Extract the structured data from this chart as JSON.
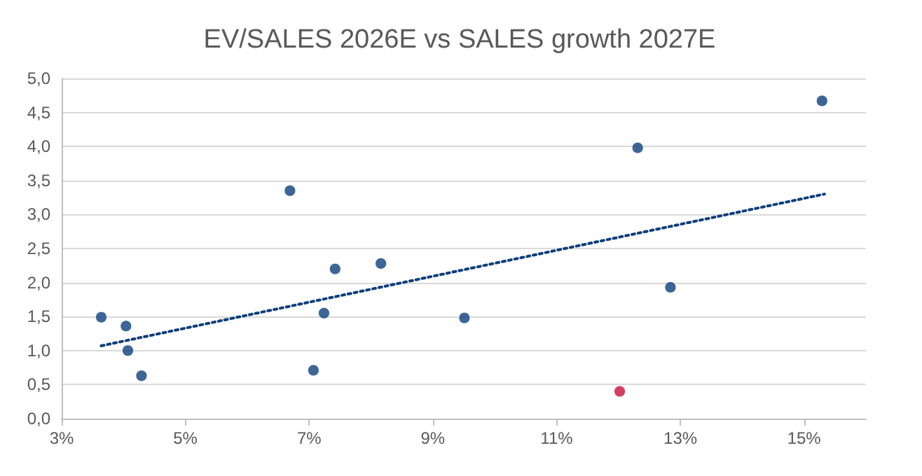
{
  "chart_data": {
    "type": "scatter",
    "title": "EV/SALES 2026E vs SALES growth 2027E",
    "xlim": [
      3,
      16
    ],
    "xticks": [
      {
        "value": 3,
        "label": "3%"
      },
      {
        "value": 5,
        "label": "5%"
      },
      {
        "value": 7,
        "label": "7%"
      },
      {
        "value": 9,
        "label": "9%"
      },
      {
        "value": 11,
        "label": "11%"
      },
      {
        "value": 13,
        "label": "13%"
      },
      {
        "value": 15,
        "label": "15%"
      }
    ],
    "ylim": [
      0,
      5
    ],
    "yticks": [
      {
        "value": 0,
        "label": "0,0"
      },
      {
        "value": 0.5,
        "label": "0,5"
      },
      {
        "value": 1,
        "label": "1,0"
      },
      {
        "value": 1.5,
        "label": "1,5"
      },
      {
        "value": 2,
        "label": "2,0"
      },
      {
        "value": 2.5,
        "label": "2,5"
      },
      {
        "value": 3,
        "label": "3,0"
      },
      {
        "value": 3.5,
        "label": "3,5"
      },
      {
        "value": 4,
        "label": "4,0"
      },
      {
        "value": 4.5,
        "label": "4,5"
      },
      {
        "value": 5,
        "label": "5,0"
      }
    ],
    "grid": "y",
    "marker": "circle",
    "series": [
      {
        "x": [
          3.64,
          4.04,
          4.07,
          4.29,
          6.69,
          7.07,
          7.24,
          7.42,
          8.16,
          9.51,
          12.02,
          12.31,
          12.84,
          15.29
        ],
        "values": [
          1.49,
          1.36,
          1.0,
          0.63,
          3.35,
          0.71,
          1.55,
          2.2,
          2.28,
          1.48,
          0.4,
          3.98,
          1.93,
          4.67
        ],
        "colors": [
          "#0d3f7a",
          "#0d3f7a",
          "#0d3f7a",
          "#0d3f7a",
          "#0d3f7a",
          "#0d3f7a",
          "#0d3f7a",
          "#0d3f7a",
          "#0d3f7a",
          "#0d3f7a",
          "#c8103e",
          "#0d3f7a",
          "#0d3f7a",
          "#0d3f7a"
        ]
      },
      {
        "type": "line",
        "x": [
          3.64,
          15.33
        ],
        "values": [
          1.07,
          3.3
        ],
        "color": "#0d3f7a",
        "line_style": "dotted",
        "marker": "none"
      }
    ]
  }
}
